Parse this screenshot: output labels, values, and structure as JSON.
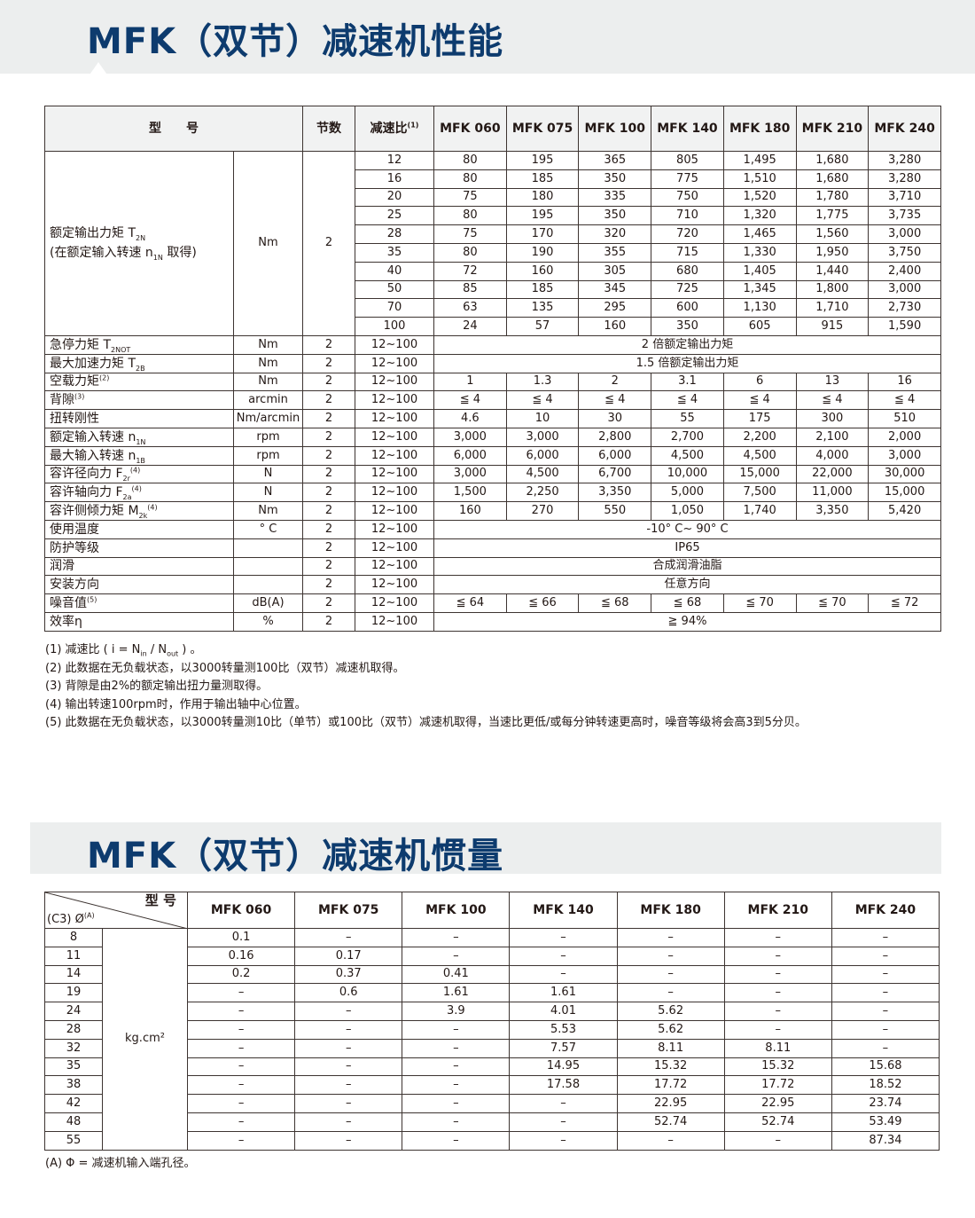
{
  "section1": {
    "title": "MFK（双节）减速机性能"
  },
  "performance": {
    "header": {
      "model": "型　　号",
      "stages": "节数",
      "ratio": "减速比",
      "ratio_note": "(1)",
      "models": [
        "MFK 060",
        "MFK 075",
        "MFK 100",
        "MFK 140",
        "MFK 180",
        "MFK 210",
        "MFK 240"
      ]
    },
    "torque": {
      "label": "额定输出力矩 T",
      "sub": "2N",
      "label2": "(在额定输入转速 n",
      "sub2": "1N",
      "label2b": " 取得)",
      "unit": "Nm",
      "stages": "2",
      "ratios": [
        "12",
        "16",
        "20",
        "25",
        "28",
        "35",
        "40",
        "50",
        "70",
        "100"
      ],
      "values": [
        [
          "80",
          "195",
          "365",
          "805",
          "1,495",
          "1,680",
          "3,280"
        ],
        [
          "80",
          "185",
          "350",
          "775",
          "1,510",
          "1,680",
          "3,280"
        ],
        [
          "75",
          "180",
          "335",
          "750",
          "1,520",
          "1,780",
          "3,710"
        ],
        [
          "80",
          "195",
          "350",
          "710",
          "1,320",
          "1,775",
          "3,735"
        ],
        [
          "75",
          "170",
          "320",
          "720",
          "1,465",
          "1,560",
          "3,000"
        ],
        [
          "80",
          "190",
          "355",
          "715",
          "1,330",
          "1,950",
          "3,750"
        ],
        [
          "72",
          "160",
          "305",
          "680",
          "1,405",
          "1,440",
          "2,400"
        ],
        [
          "85",
          "185",
          "345",
          "725",
          "1,345",
          "1,800",
          "3,000"
        ],
        [
          "63",
          "135",
          "295",
          "600",
          "1,130",
          "1,710",
          "2,730"
        ],
        [
          "24",
          "57",
          "160",
          "350",
          "605",
          "915",
          "1,590"
        ]
      ]
    },
    "rows": [
      {
        "label": "急停力矩 T",
        "sub": "2NOT",
        "sup": "",
        "unit": "Nm",
        "stages": "2",
        "ratio": "12~100",
        "merged": "2 倍额定输出力矩"
      },
      {
        "label": "最大加速力矩 T",
        "sub": "2B",
        "sup": "",
        "unit": "Nm",
        "stages": "2",
        "ratio": "12~100",
        "merged": "1.5 倍额定输出力矩"
      },
      {
        "label": "空载力矩",
        "sub": "",
        "sup": "(2)",
        "unit": "Nm",
        "stages": "2",
        "ratio": "12~100",
        "values": [
          "1",
          "1.3",
          "2",
          "3.1",
          "6",
          "13",
          "16"
        ]
      },
      {
        "label": "背隙",
        "sub": "",
        "sup": "(3)",
        "unit": "arcmin",
        "stages": "2",
        "ratio": "12~100",
        "values": [
          "≦ 4",
          "≦ 4",
          "≦ 4",
          "≦ 4",
          "≦ 4",
          "≦ 4",
          "≦ 4"
        ]
      },
      {
        "label": "扭转刚性",
        "sub": "",
        "sup": "",
        "unit": "Nm/arcmin",
        "stages": "2",
        "ratio": "12~100",
        "values": [
          "4.6",
          "10",
          "30",
          "55",
          "175",
          "300",
          "510"
        ]
      },
      {
        "label": "额定输入转速 n",
        "sub": "1N",
        "sup": "",
        "unit": "rpm",
        "stages": "2",
        "ratio": "12~100",
        "values": [
          "3,000",
          "3,000",
          "2,800",
          "2,700",
          "2,200",
          "2,100",
          "2,000"
        ]
      },
      {
        "label": "最大输入转速 n",
        "sub": "1B",
        "sup": "",
        "unit": "rpm",
        "stages": "2",
        "ratio": "12~100",
        "values": [
          "6,000",
          "6,000",
          "6,000",
          "4,500",
          "4,500",
          "4,000",
          "3,000"
        ]
      },
      {
        "label": "容许径向力 F",
        "sub": "2r",
        "sup": "(4)",
        "unit": "N",
        "stages": "2",
        "ratio": "12~100",
        "values": [
          "3,000",
          "4,500",
          "6,700",
          "10,000",
          "15,000",
          "22,000",
          "30,000"
        ]
      },
      {
        "label": "容许轴向力 F",
        "sub": "2a",
        "sup": "(4)",
        "unit": "N",
        "stages": "2",
        "ratio": "12~100",
        "values": [
          "1,500",
          "2,250",
          "3,350",
          "5,000",
          "7,500",
          "11,000",
          "15,000"
        ]
      },
      {
        "label": "容许侧倾力矩 M",
        "sub": "2k",
        "sup": "(4)",
        "unit": "Nm",
        "stages": "2",
        "ratio": "12~100",
        "values": [
          "160",
          "270",
          "550",
          "1,050",
          "1,740",
          "3,350",
          "5,420"
        ]
      },
      {
        "label": "使用温度",
        "sub": "",
        "sup": "",
        "unit": "° C",
        "stages": "2",
        "ratio": "12~100",
        "merged": "-10° C~ 90° C"
      },
      {
        "label": "防护等级",
        "sub": "",
        "sup": "",
        "unit": "",
        "stages": "2",
        "ratio": "12~100",
        "merged": "IP65"
      },
      {
        "label": "润滑",
        "sub": "",
        "sup": "",
        "unit": "",
        "stages": "2",
        "ratio": "12~100",
        "merged": "合成润滑油脂"
      },
      {
        "label": "安装方向",
        "sub": "",
        "sup": "",
        "unit": "",
        "stages": "2",
        "ratio": "12~100",
        "merged": "任意方向"
      },
      {
        "label": "噪音值",
        "sub": "",
        "sup": "(5)",
        "unit": "dB(A)",
        "stages": "2",
        "ratio": "12~100",
        "values": [
          "≦ 64",
          "≦ 66",
          "≦ 68",
          "≦ 68",
          "≦ 70",
          "≦ 70",
          "≦ 72"
        ]
      },
      {
        "label": "效率η",
        "sub": "",
        "sup": "",
        "unit": "%",
        "stages": "2",
        "ratio": "12~100",
        "merged": "≧ 94%"
      }
    ],
    "notes": [
      "(1) 减速比 ( i = N_in / N_out ) 。",
      "(2) 此数据在无负载状态，以3000转量测100比（双节）减速机取得。",
      "(3) 背隙是由2%的额定输出扭力量测取得。",
      "(4) 输出转速100rpm时，作用于输出轴中心位置。",
      "(5) 此数据在无负载状态，以3000转量测10比（单节）或100比（双节）减速机取得，当速比更低/或每分钟转速更高时，噪音等级将会高3到5分贝。"
    ],
    "note1_parts": {
      "a": "(1) 减速比 ( i = N",
      "sub_in": "in",
      "b": " / N",
      "sub_out": "out",
      "c": " ) 。"
    }
  },
  "section2": {
    "title": "MFK（双节）减速机惯量"
  },
  "inertia": {
    "header": {
      "model": "型 号",
      "bore": "(C3) Ø",
      "bore_sup": "(A)",
      "models": [
        "MFK 060",
        "MFK 075",
        "MFK 100",
        "MFK 140",
        "MFK 180",
        "MFK 210",
        "MFK 240"
      ]
    },
    "unit": "kg.cm²",
    "rows": [
      {
        "d": "8",
        "values": [
          "0.1",
          "–",
          "–",
          "–",
          "–",
          "–",
          "–"
        ]
      },
      {
        "d": "11",
        "values": [
          "0.16",
          "0.17",
          "–",
          "–",
          "–",
          "–",
          "–"
        ]
      },
      {
        "d": "14",
        "values": [
          "0.2",
          "0.37",
          "0.41",
          "–",
          "–",
          "–",
          "–"
        ]
      },
      {
        "d": "19",
        "values": [
          "–",
          "0.6",
          "1.61",
          "1.61",
          "–",
          "–",
          "–"
        ]
      },
      {
        "d": "24",
        "values": [
          "–",
          "–",
          "3.9",
          "4.01",
          "5.62",
          "–",
          "–"
        ]
      },
      {
        "d": "28",
        "values": [
          "–",
          "–",
          "–",
          "5.53",
          "5.62",
          "–",
          "–"
        ]
      },
      {
        "d": "32",
        "values": [
          "–",
          "–",
          "–",
          "7.57",
          "8.11",
          "8.11",
          "–"
        ]
      },
      {
        "d": "35",
        "values": [
          "–",
          "–",
          "–",
          "14.95",
          "15.32",
          "15.32",
          "15.68"
        ]
      },
      {
        "d": "38",
        "values": [
          "–",
          "–",
          "–",
          "17.58",
          "17.72",
          "17.72",
          "18.52"
        ]
      },
      {
        "d": "42",
        "values": [
          "–",
          "–",
          "–",
          "–",
          "22.95",
          "22.95",
          "23.74"
        ]
      },
      {
        "d": "48",
        "values": [
          "–",
          "–",
          "–",
          "–",
          "52.74",
          "52.74",
          "53.49"
        ]
      },
      {
        "d": "55",
        "values": [
          "–",
          "–",
          "–",
          "–",
          "–",
          "–",
          "87.34"
        ]
      }
    ],
    "note": "(A)  Φ = 减速机输入端孔径。"
  },
  "colors": {
    "title": "#0d3b6e",
    "band": "#eceeee",
    "text": "#231815",
    "border": "#3d3431"
  }
}
